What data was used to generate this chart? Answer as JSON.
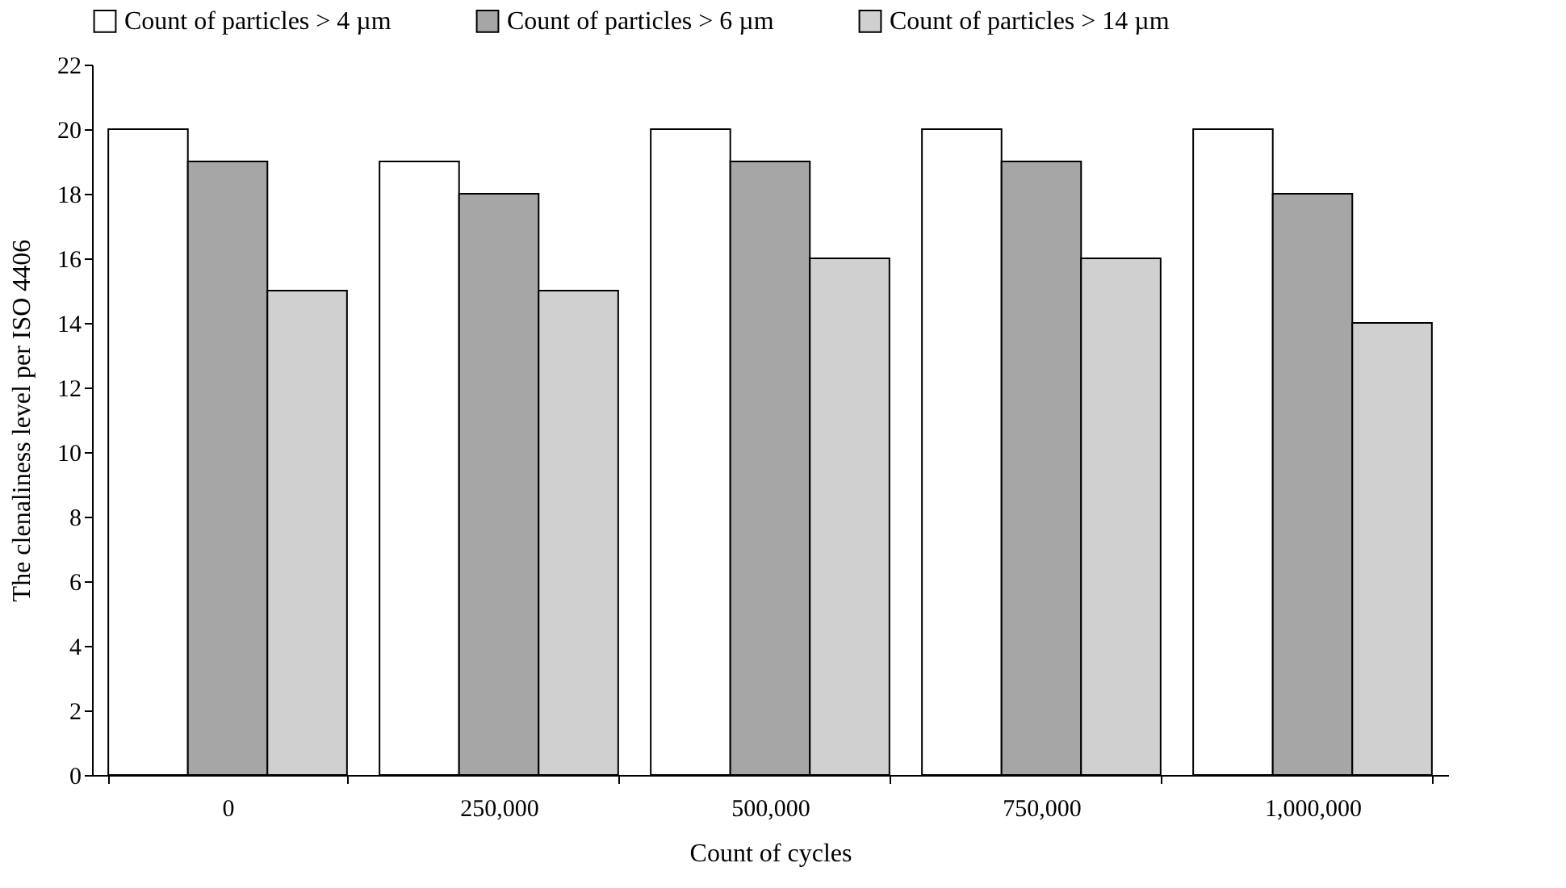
{
  "chart_data": {
    "type": "bar",
    "xlabel": "Count of cycles",
    "ylabel": "The clenaliness level per ISO 4406",
    "categories": [
      "0",
      "250,000",
      "500,000",
      "750,000",
      "1,000,000"
    ],
    "series": [
      {
        "name": "Count of particles > 4 µm",
        "color": "#ffffff",
        "values": [
          20,
          19,
          20,
          20,
          20
        ]
      },
      {
        "name": "Count of particles > 6 µm",
        "color": "#a6a6a6",
        "values": [
          19,
          18,
          19,
          19,
          18
        ]
      },
      {
        "name": "Count of particles > 14 µm",
        "color": "#d0d0d0",
        "values": [
          15,
          15,
          16,
          16,
          14
        ]
      }
    ],
    "ylim": [
      0,
      22
    ],
    "yticks": [
      0,
      2,
      4,
      6,
      8,
      10,
      12,
      14,
      16,
      18,
      20,
      22
    ],
    "grid": false,
    "legend": "top"
  }
}
